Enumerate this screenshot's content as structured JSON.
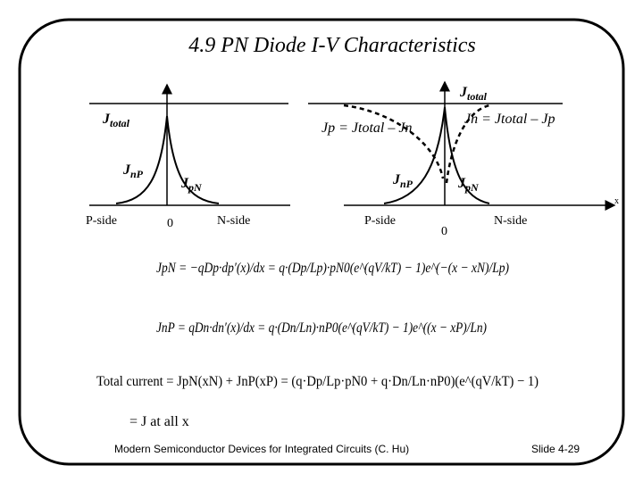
{
  "header": {
    "title": "4.9   PN Diode I-V Characteristics"
  },
  "left_diagram": {
    "jtotal": {
      "main": "J",
      "sub": "total"
    },
    "jnp": {
      "main": "J",
      "sub": "nP"
    },
    "jpn": {
      "main": "J",
      "sub": "pN"
    },
    "p_side": "P-side",
    "origin": "0",
    "n_side": "N-side"
  },
  "right_diagram": {
    "jtotal": {
      "main": "J",
      "sub": "total"
    },
    "jp_eq": "Jp = Jtotal – Jn",
    "jn_eq": "Jn = Jtotal – Jp",
    "jnp": {
      "main": "J",
      "sub": "nP"
    },
    "jpn": {
      "main": "J",
      "sub": "pN"
    },
    "p_side": "P-side",
    "origin": "0",
    "n_side": "N-side",
    "x_axis": "x"
  },
  "equations": {
    "jpn": "JpN = −qDp·dp′(x)/dx = q·(Dp/Lp)·pN0(e^(qV/kT) − 1)e^(−(x − xN)/Lp)",
    "jnp": "JnP = qDn·dn′(x)/dx = q·(Dn/Ln)·nP0(e^(qV/kT) − 1)e^((x − xP)/Ln)",
    "total": "Total current = JpN(xN) + JnP(xP) = (q·Dp/Lp·pN0 + q·Dn/Ln·nP0)(e^(qV/kT) − 1)",
    "all_x": "= J at all x"
  },
  "footer": {
    "source": "Modern Semiconductor Devices for Integrated Circuits (C. Hu)",
    "slide": "Slide 4-29"
  }
}
